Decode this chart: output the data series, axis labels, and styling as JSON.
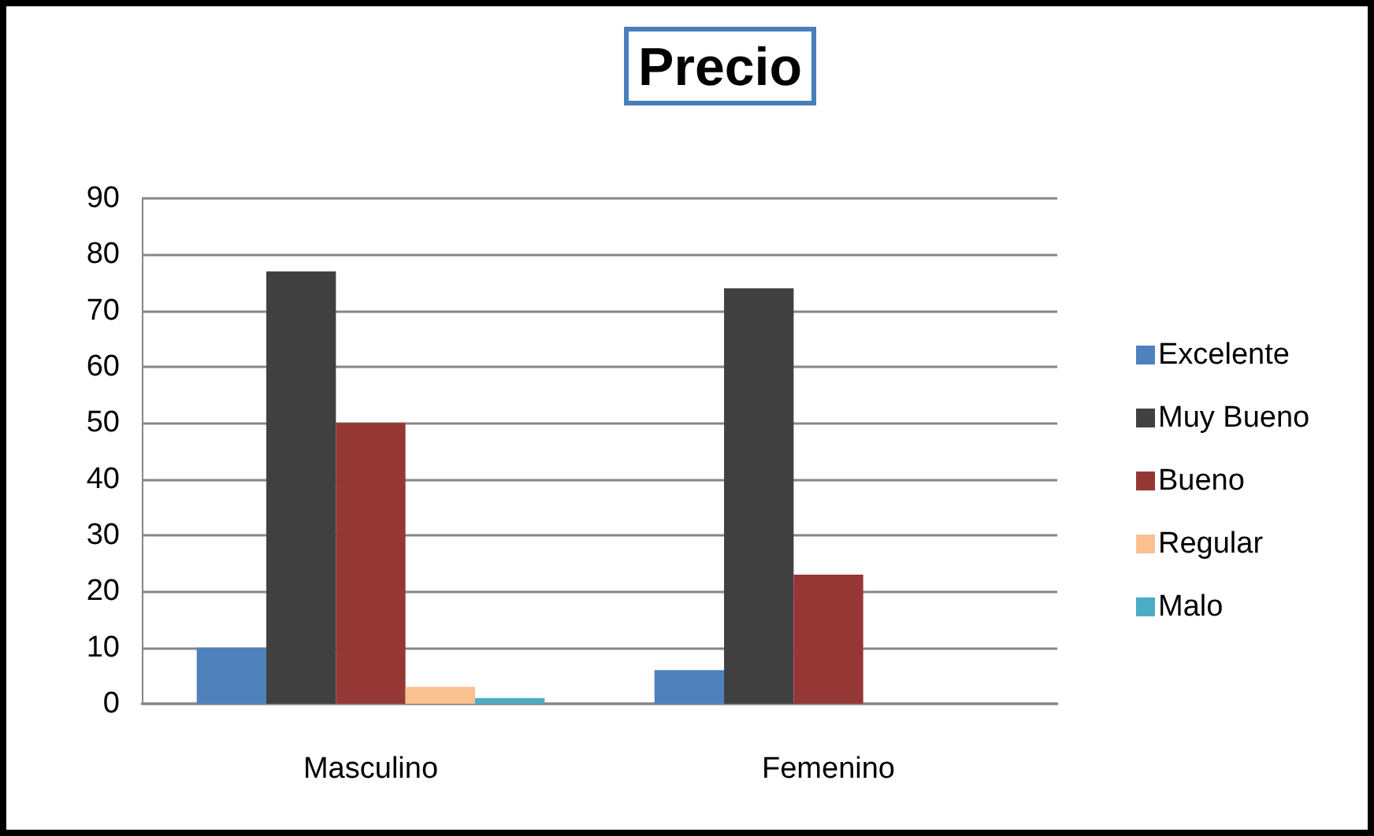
{
  "chart_data": {
    "type": "bar",
    "title": "Precio",
    "categories": [
      "Masculino",
      "Femenino"
    ],
    "series": [
      {
        "name": "Excelente",
        "color": "#4f81bd",
        "values": [
          10,
          6
        ]
      },
      {
        "name": "Muy Bueno",
        "color": "#404040",
        "values": [
          77,
          74
        ]
      },
      {
        "name": "Bueno",
        "color": "#953735",
        "values": [
          50,
          23
        ]
      },
      {
        "name": "Regular",
        "color": "#fac090",
        "values": [
          3,
          0
        ]
      },
      {
        "name": "Malo",
        "color": "#4bacc6",
        "values": [
          1,
          0
        ]
      }
    ],
    "ylim": [
      0,
      90
    ],
    "yticks": [
      0,
      10,
      20,
      30,
      40,
      50,
      60,
      70,
      80,
      90
    ],
    "grid": "y",
    "legend": "right"
  }
}
